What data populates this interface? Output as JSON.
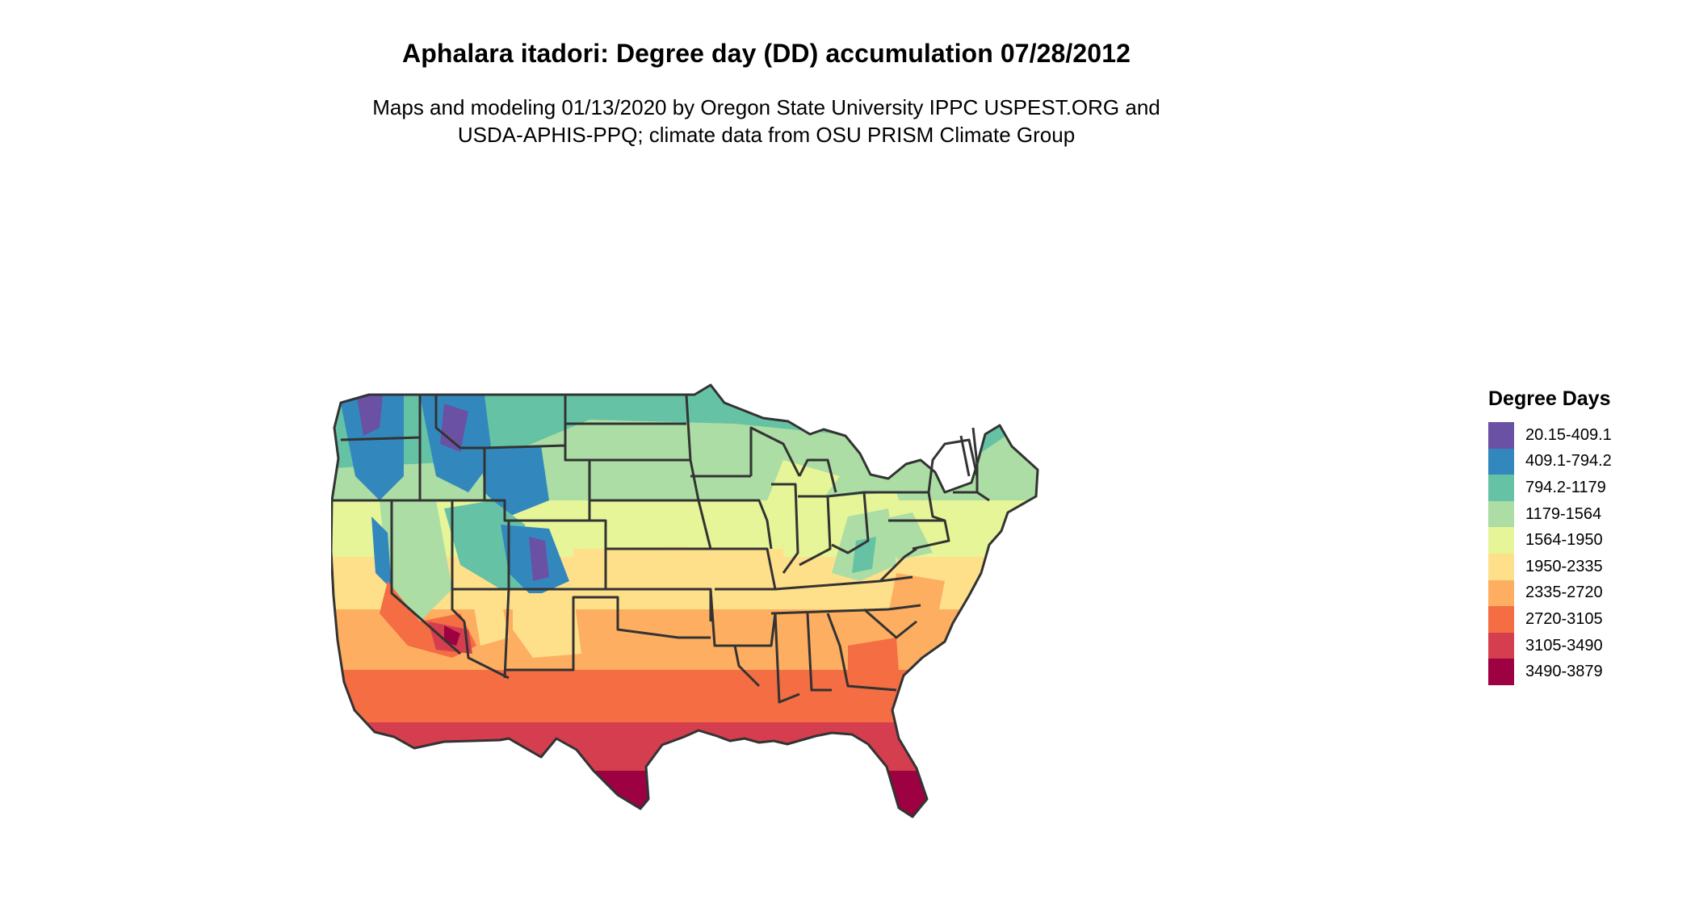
{
  "title": "Aphalara itadori: Degree day (DD) accumulation 07/28/2012",
  "subtitle_line1": "Maps and modeling 01/13/2020 by Oregon State University IPPC USPEST.ORG and",
  "subtitle_line2": "USDA-APHIS-PPQ; climate data from OSU PRISM Climate Group",
  "legend": {
    "title": "Degree Days",
    "classes": [
      {
        "label": "20.15-409.1",
        "color": "#6a51a3"
      },
      {
        "label": "409.1-794.2",
        "color": "#3288bd"
      },
      {
        "label": "794.2-1179",
        "color": "#66c2a5"
      },
      {
        "label": "1179-1564",
        "color": "#abdda4"
      },
      {
        "label": "1564-1950",
        "color": "#e6f598"
      },
      {
        "label": "1950-2335",
        "color": "#fee08b"
      },
      {
        "label": "2335-2720",
        "color": "#fdae61"
      },
      {
        "label": "2720-3105",
        "color": "#f46d43"
      },
      {
        "label": "3105-3490",
        "color": "#d53e4f"
      },
      {
        "label": "3490-3879",
        "color": "#9e0142"
      }
    ]
  },
  "map": {
    "region": "Contiguous United States",
    "border_color": "#333333"
  }
}
